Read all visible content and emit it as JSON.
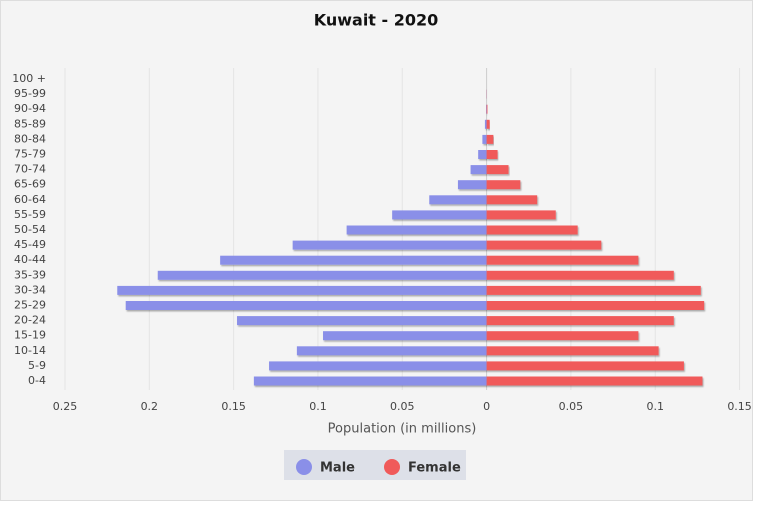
{
  "chart_data": {
    "type": "pyramid",
    "title": "Kuwait - 2020",
    "x_label": "Population (in millions)",
    "categories": [
      "100 +",
      "95-99",
      "90-94",
      "85-89",
      "80-84",
      "75-79",
      "70-74",
      "65-69",
      "60-64",
      "55-59",
      "50-54",
      "45-49",
      "40-44",
      "35-39",
      "30-34",
      "25-29",
      "20-24",
      "15-19",
      "10-14",
      "5-9",
      "0-4"
    ],
    "series": [
      {
        "name": "Male",
        "color": "#8a8fe8",
        "values": [
          0,
          -0.0001,
          -0.0003,
          -0.001,
          -0.0025,
          -0.005,
          -0.0095,
          -0.017,
          -0.034,
          -0.056,
          -0.083,
          -0.115,
          -0.158,
          -0.195,
          -0.219,
          -0.214,
          -0.148,
          -0.097,
          -0.1125,
          -0.129,
          -0.138
        ]
      },
      {
        "name": "Female",
        "color": "#f05a5a",
        "values": [
          0,
          0.0001,
          0.0005,
          0.0018,
          0.004,
          0.0065,
          0.013,
          0.02,
          0.03,
          0.041,
          0.054,
          0.068,
          0.09,
          0.111,
          0.127,
          0.129,
          0.111,
          0.09,
          0.102,
          0.117,
          0.128
        ]
      }
    ],
    "xlim": [
      -0.25,
      0.155
    ],
    "xticks": [
      {
        "value": -0.25,
        "label": "0.25"
      },
      {
        "value": -0.2,
        "label": "0.2"
      },
      {
        "value": -0.15,
        "label": "0.15"
      },
      {
        "value": -0.1,
        "label": "0.1"
      },
      {
        "value": -0.05,
        "label": "0.05"
      },
      0,
      0.05,
      0.1,
      0.15
    ],
    "grid": true
  }
}
